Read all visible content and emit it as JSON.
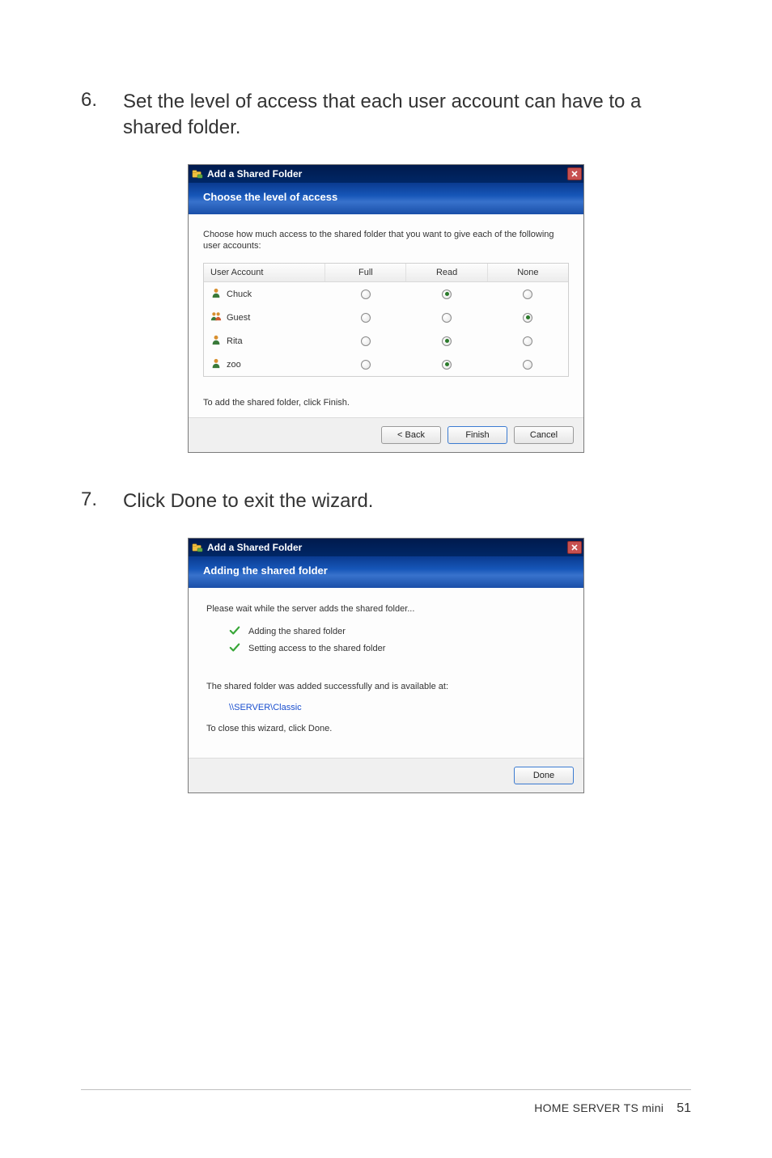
{
  "steps": {
    "six": {
      "num": "6.",
      "text": "Set the level of access that each user account can have to a shared folder."
    },
    "seven": {
      "num": "7.",
      "text": "Click Done to exit the wizard."
    }
  },
  "dialog1": {
    "title": "Add a Shared Folder",
    "banner": "Choose the level of access",
    "instruction": "Choose how much access to the shared folder that you want to give each of the following user accounts:",
    "columns": {
      "user": "User Account",
      "full": "Full",
      "read": "Read",
      "none": "None"
    },
    "rows": [
      {
        "name": "Chuck",
        "icon": "single",
        "selected": "read"
      },
      {
        "name": "Guest",
        "icon": "group",
        "selected": "none"
      },
      {
        "name": "Rita",
        "icon": "single",
        "selected": "read"
      },
      {
        "name": "zoo",
        "icon": "single",
        "selected": "read"
      }
    ],
    "helper": "To add the shared folder, click Finish.",
    "buttons": {
      "back": "< Back",
      "finish": "Finish",
      "cancel": "Cancel"
    }
  },
  "dialog2": {
    "title": "Add a Shared Folder",
    "banner": "Adding the shared folder",
    "wait": "Please wait while the server adds the shared folder...",
    "tasks": [
      "Adding the shared folder",
      "Setting access to the shared folder"
    ],
    "success": "The shared folder was added successfully and is available at:",
    "link": "\\\\SERVER\\Classic",
    "close_hint": "To close this wizard, click Done.",
    "buttons": {
      "done": "Done"
    }
  },
  "footer": {
    "title": "HOME SERVER TS mini",
    "page": "51"
  },
  "colors": {
    "titlebar_bg": "#002766",
    "banner_bg": "#1656b8",
    "link": "#1a4fcf",
    "check": "#37a637",
    "close": "#c75050"
  }
}
